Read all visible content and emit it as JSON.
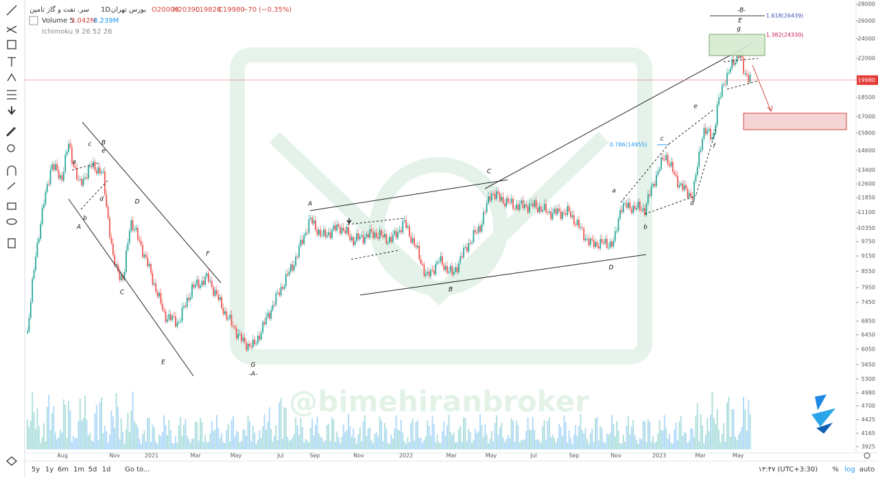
{
  "header": {
    "exchange": "بورس تهران",
    "interval": "1D",
    "symbol": "سر. نفت و گاز تامین",
    "ohlc": [
      "O20000",
      "H20390",
      "L19820",
      "C19980"
    ],
    "change": "−70 (−0.35%)"
  },
  "indicators": [
    {
      "name": "Volume 5",
      "values": [
        "3.042M",
        "8.239M"
      ]
    },
    {
      "name": "Ichimoku 9 26 52 26"
    }
  ],
  "price_axis": {
    "scale": "log",
    "labels": [
      28000,
      26000,
      24000,
      22000,
      18500,
      17000,
      15800,
      14600,
      13400,
      12600,
      11850,
      11100,
      10350,
      9750,
      9150,
      8550,
      7950,
      7450,
      6850,
      6450,
      6050,
      5650,
      5300,
      4980,
      4700,
      4425,
      4165,
      3925
    ],
    "last_price": 19980
  },
  "time_axis": {
    "labels": [
      "Aug",
      "Nov",
      "2021",
      "Mar",
      "May",
      "Jul",
      "Sep",
      "Nov",
      "2022",
      "Mar",
      "May",
      "Jul",
      "Sep",
      "Nov",
      "2023",
      "Mar",
      "May"
    ]
  },
  "annotations": [
    "a",
    "c",
    "B",
    "e",
    "d",
    "b",
    "A",
    "D",
    "C",
    "F",
    "E",
    "G",
    "-A-",
    "A",
    "C",
    "B",
    "D",
    "a",
    "b",
    "c",
    "d",
    "e",
    "f",
    "0.786(14955)",
    "g",
    "E",
    "-B-",
    "1.618(26439)",
    "1.382(24330)"
  ],
  "watermark": "@bimehiranbroker",
  "bottom_bar": {
    "ranges": [
      "5y",
      "1y",
      "6m",
      "1m",
      "5d",
      "1d"
    ],
    "goto": "Go to...",
    "clock": "۱۳:۴۷ (UTC+3:30)",
    "options": [
      "%",
      "log",
      "auto"
    ]
  }
}
